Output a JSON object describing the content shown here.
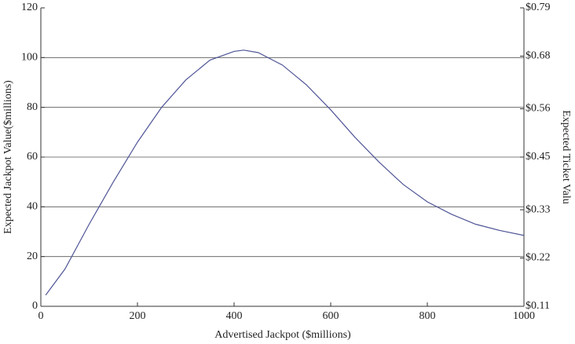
{
  "chart_data": {
    "type": "line",
    "xlabel": "Advertised Jackpot ($millions)",
    "ylabel": "Expected Jackpot Value($millions)",
    "y2label": "Expected Ticket Valu",
    "x": [
      10,
      50,
      100,
      150,
      200,
      250,
      300,
      350,
      400,
      420,
      450,
      500,
      550,
      600,
      650,
      700,
      750,
      800,
      850,
      900,
      950,
      1000
    ],
    "series": [
      {
        "name": "Expected Jackpot Value",
        "color": "#4f5596",
        "values": [
          4.5,
          15,
          33,
          50,
          66,
          80,
          91,
          99,
          102.5,
          103,
          102,
          97,
          89,
          79,
          68,
          58,
          49,
          42,
          37,
          33,
          30.5,
          28.5
        ]
      }
    ],
    "xlim": [
      0,
      1000
    ],
    "xticks": [
      0,
      200,
      400,
      600,
      800,
      1000
    ],
    "ylim": [
      0,
      120
    ],
    "yticks": [
      0,
      20,
      40,
      60,
      80,
      100,
      120
    ],
    "y2lim": [
      0.11,
      0.79
    ],
    "y2ticks": [
      {
        "value": 0.11,
        "label": "$0.11"
      },
      {
        "value": 0.22,
        "label": "$0.22"
      },
      {
        "value": 0.33,
        "label": "$0.33"
      },
      {
        "value": 0.45,
        "label": "$0.45"
      },
      {
        "value": 0.56,
        "label": "$0.56"
      },
      {
        "value": 0.68,
        "label": "$0.68"
      },
      {
        "value": 0.79,
        "label": "$0.79"
      }
    ],
    "grid": true
  }
}
